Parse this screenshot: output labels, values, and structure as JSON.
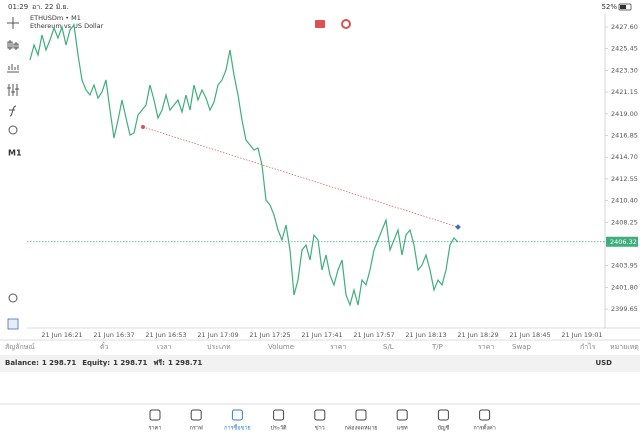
{
  "status_bar": {
    "time": "01:29",
    "date": "อา. 22 มิ.ย.",
    "battery": "52%"
  },
  "toolbar": {
    "timeframe": "M1"
  },
  "chart_data": {
    "type": "line",
    "title": "ETHUSDm • M1",
    "subtitle": "Ethereum vs US Dollar",
    "color": "#3fae7c",
    "values": [
      2424.33,
      2425.82,
      2424.83,
      2426.81,
      2425.32,
      2426.31,
      2427.5,
      2426.51,
      2427.6,
      2425.82,
      2427.3,
      2427.8,
      2424.83,
      2422.35,
      2421.36,
      2420.86,
      2421.85,
      2420.56,
      2421.16,
      2422.35,
      2419.37,
      2416.6,
      2418.38,
      2420.37,
      2418.58,
      2416.9,
      2417.1,
      2418.88,
      2419.37,
      2419.87,
      2421.85,
      2420.37,
      2418.58,
      2419.37,
      2420.86,
      2419.37,
      2419.87,
      2420.37,
      2419.18,
      2420.86,
      2419.37,
      2421.85,
      2420.37,
      2421.36,
      2420.56,
      2419.37,
      2420.17,
      2421.85,
      2422.35,
      2423.34,
      2425.32,
      2422.84,
      2420.86,
      2418.38,
      2416.4,
      2415.91,
      2415.41,
      2415.61,
      2413.92,
      2410.46,
      2409.96,
      2408.97,
      2407.48,
      2406.49,
      2407.98,
      2405.5,
      2401.04,
      2402.53,
      2405.5,
      2406.0,
      2404.51,
      2406.99,
      2406.49,
      2403.52,
      2405.01,
      2403.02,
      2402.03,
      2403.52,
      2404.51,
      2401.04,
      2400.05,
      2401.54,
      2400.05,
      2402.53,
      2402.03,
      2403.52,
      2405.5,
      2406.49,
      2407.48,
      2408.47,
      2405.5,
      2406.49,
      2407.48,
      2405.01,
      2406.99,
      2407.48,
      2406.0,
      2403.52,
      2404.01,
      2405.01,
      2403.52,
      2401.54,
      2402.53,
      2402.03,
      2403.52,
      2406.0,
      2406.69,
      2406.29
    ],
    "x_axis_labels": [
      "21 Jun 16:21",
      "21 Jun 16:37",
      "21 Jun 16:53",
      "21 Jun 17:09",
      "21 Jun 17:25",
      "21 Jun 17:41",
      "21 Jun 17:57",
      "21 Jun 18:13",
      "21 Jun 18:29",
      "21 Jun 18:45",
      "21 Jun 19:01"
    ],
    "ylim": [
      2398.07,
      2428.89
    ],
    "yticks": [
      {
        "value": 2427.6,
        "label": "2427.60"
      },
      2425.45,
      {
        "value": 2423.3,
        "label": "2423.30"
      },
      2421.15,
      {
        "value": 2419,
        "label": "2419.00"
      },
      2416.85,
      {
        "value": 2414.7,
        "label": "2414.70"
      },
      2412.55,
      {
        "value": 2410.4,
        "label": "2410.40"
      },
      2408.25,
      2403.95,
      {
        "value": 2401.8,
        "label": "2401.80"
      },
      2399.65
    ],
    "current_price": 2406.32,
    "current_price_color": "#3fae7c",
    "trendline": {
      "color": "#d9534f",
      "values": [
        2417.69,
        2407.78
      ]
    },
    "grid": false
  },
  "trade_table": {
    "columns": [
      "สัญลักษณ์",
      "ตั๋ว",
      "เวลา",
      "ประเภท",
      "Volume",
      "ราคา",
      "S/L",
      "T/P",
      "ราคา",
      "Swap",
      "กำไร",
      "หมายเหตุ"
    ]
  },
  "account": {
    "items": [
      {
        "label": "Balance:",
        "value": "1 298.71"
      },
      {
        "label": "Equity:",
        "value": "1 298.71"
      },
      {
        "label": "ฟรี:",
        "value": "1 298.71"
      }
    ],
    "currency": "USD"
  },
  "nav": {
    "items": [
      "ราคา",
      "กราฟ",
      "การซื้อขาย",
      "ประวัติ",
      "ข่าว",
      "กล่องจดหมาย",
      "แชท",
      "บัญชี",
      "การตั้งค่า"
    ],
    "active": 2
  }
}
